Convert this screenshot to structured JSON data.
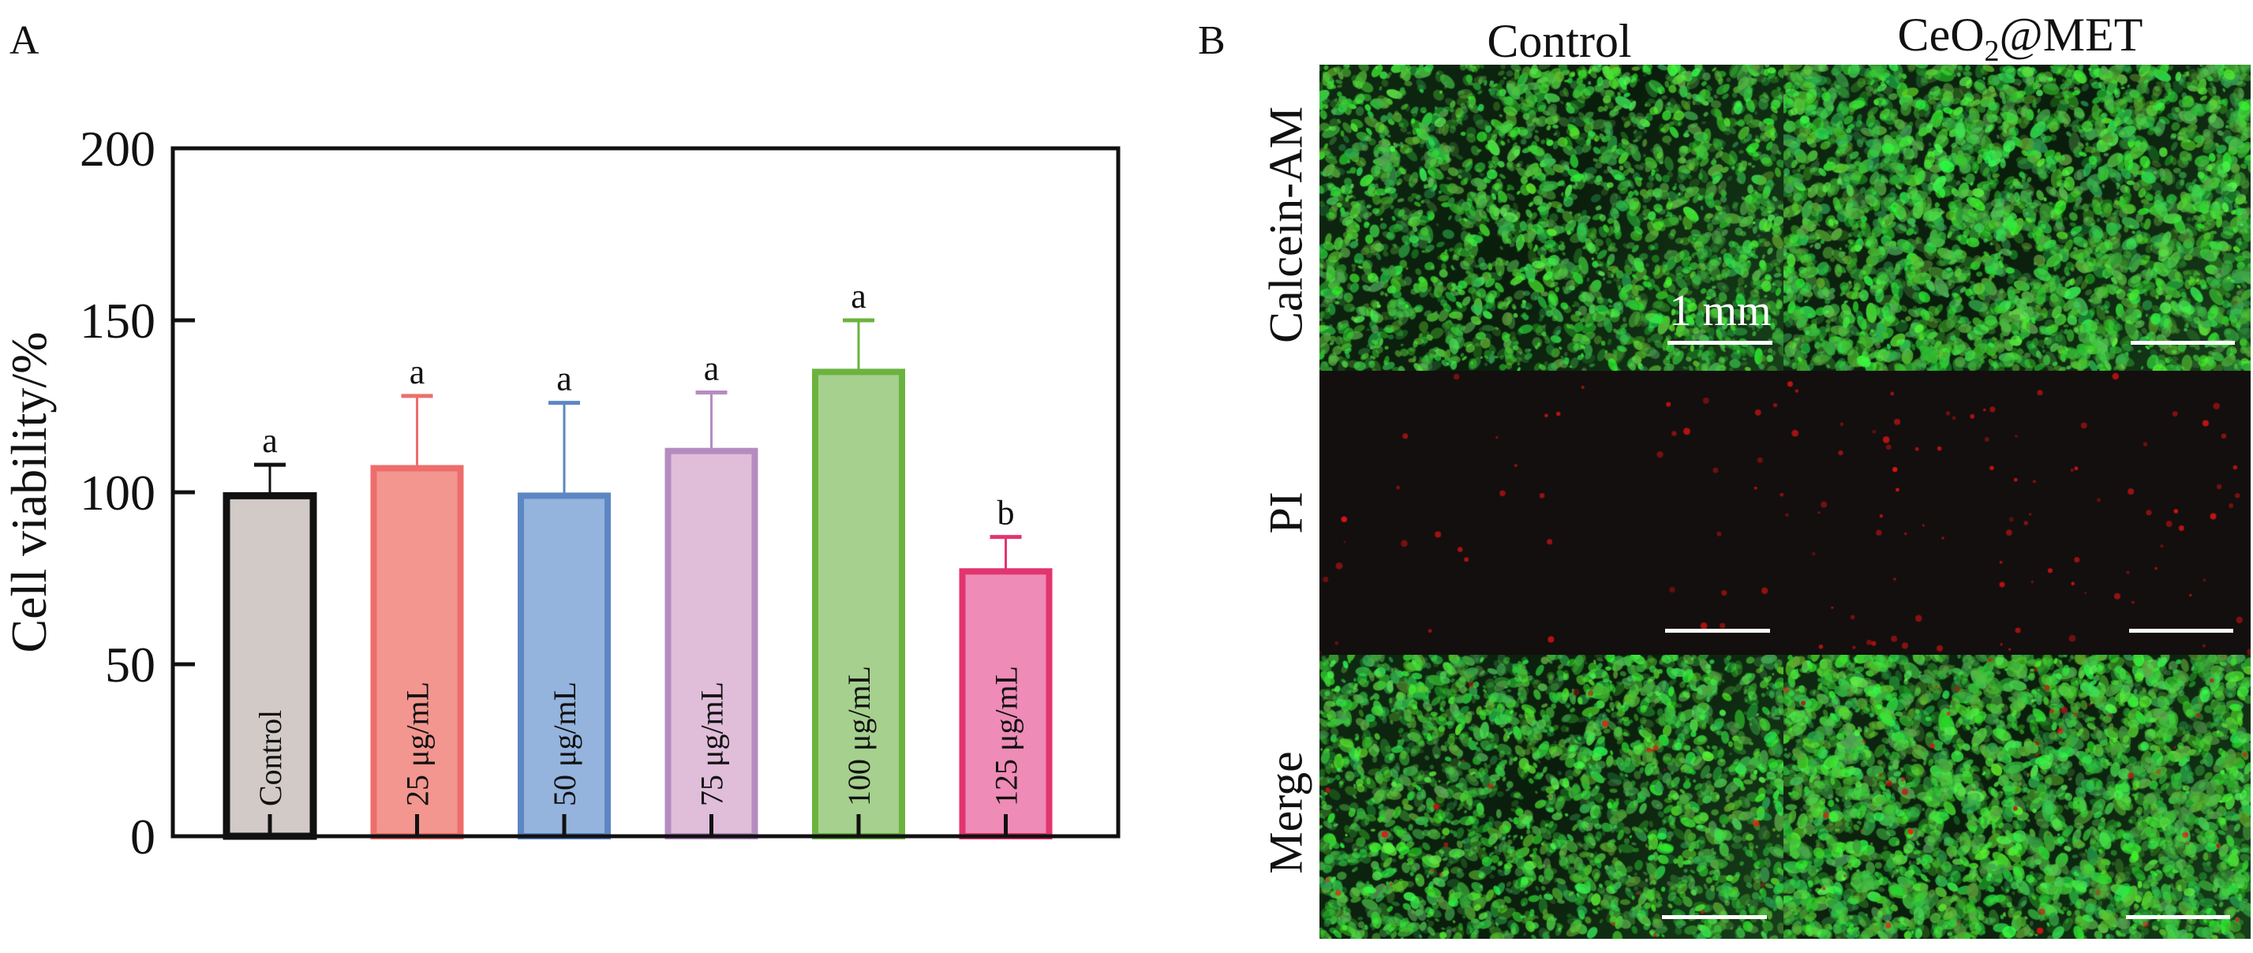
{
  "panel_a": {
    "letter": "A"
  },
  "chart_data": {
    "type": "bar",
    "title": "",
    "xlabel": "",
    "ylabel": "Cell viability/%",
    "ylim": [
      0,
      200
    ],
    "yticks": [
      "0",
      "50",
      "100",
      "150",
      "200"
    ],
    "ytick_values": [
      0,
      50,
      100,
      150,
      200
    ],
    "grid": false,
    "categories": [
      "Control",
      "25 μg/mL",
      "50 μg/mL",
      "75 μg/mL",
      "100 μg/mL",
      "125 μg/mL"
    ],
    "values": [
      99,
      107,
      99,
      112,
      135,
      77
    ],
    "error_upper": [
      9,
      21,
      27,
      17,
      15,
      10
    ],
    "significance_letters": [
      "a",
      "a",
      "a",
      "a",
      "a",
      "b"
    ],
    "fill_colors": [
      "#d1cac7",
      "#f2968f",
      "#94b3dd",
      "#e0bdd9",
      "#a6d08e",
      "#ee8bb6"
    ],
    "stroke_colors": [
      "#111111",
      "#ee6d6c",
      "#5c87c3",
      "#b58cc0",
      "#6bb33f",
      "#e2356f"
    ]
  },
  "panel_b": {
    "letter": "B",
    "columns": [
      "Control",
      "CeO",
      "2",
      "@MET"
    ],
    "rows": [
      "Calcein-AM",
      "PI",
      "Merge"
    ],
    "scale_bar_label": "1 mm"
  }
}
